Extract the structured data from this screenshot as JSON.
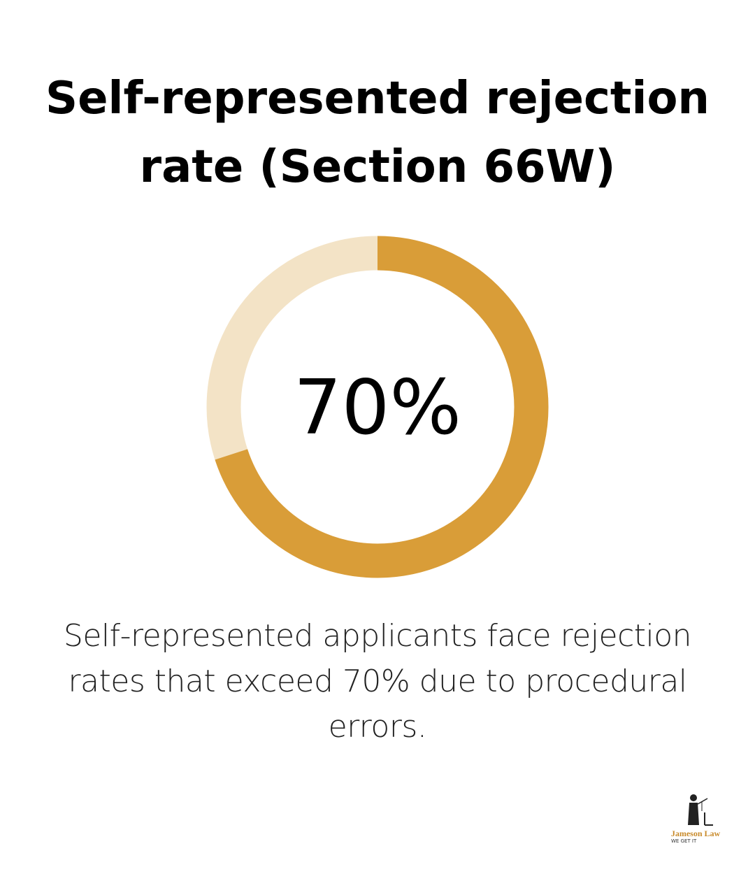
{
  "chart_data": {
    "type": "donut",
    "title": "Self-represented rejection rate (Section 66W)",
    "values": [
      70
    ],
    "value_labels": [
      "70%"
    ],
    "ylim": [
      0,
      100
    ],
    "color": "#d99d38",
    "track_color": "#f3e3c6",
    "caption": "Self-represented applicants face rejection rates that exceed 70% due to procedural errors."
  },
  "logo": {
    "name": "Jameson Law",
    "tagline": "WE GET IT"
  }
}
